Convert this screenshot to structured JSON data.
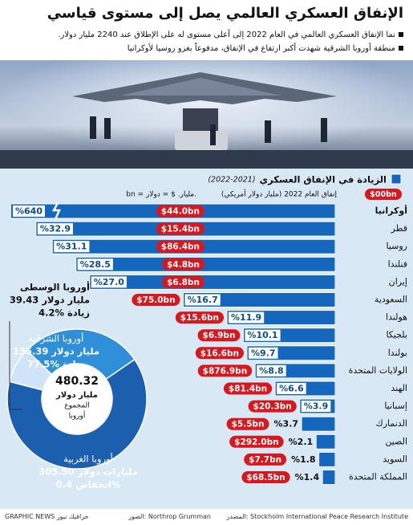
{
  "header": {
    "title": "الإنفاق العسكري العالمي يصل إلى مستوى قياسي",
    "bullets": [
      "نما الإنفاق العسكري العالمي في العام 2022 إلى أعلى مستوى له على الإطلاق عند 2240 مليار دولار.",
      "منطقة أوروبا الشرقية شهدت أكبر ارتفاع في الإنفاق، مدفوعاً بغزو روسيا لأوكرانيا"
    ]
  },
  "footer": {
    "source": "المصدر: Stockholm International Peace Research Institute",
    "photos": "الصور: Northrop Grumman",
    "brand": "GRAPHIC NEWS جرافيك نيوز"
  },
  "chart_data": [
    {
      "type": "bar",
      "orientation": "horizontal",
      "period": "(2022-2021)",
      "unit_note": "bn = مليار.  $ = دولار.",
      "categories": [
        "أوكرانيا",
        "قطر",
        "روسيا",
        "فنلندا",
        "إيران",
        "السعودية",
        "هولندا",
        "بلجيكا",
        "بولندا",
        "الولايات المتحدة",
        "الهند",
        "إسبانيا",
        "الدنمارك",
        "الصين",
        "السويد",
        "المملكة المتحدة"
      ],
      "series": [
        {
          "name": "الزيادة في الإنفاق العسكري",
          "color": "#1567bd",
          "values": [
            640,
            32.9,
            31.1,
            28.5,
            27.0,
            16.7,
            11.9,
            10.1,
            9.7,
            8.8,
            6.6,
            3.9,
            3.7,
            2.1,
            1.8,
            1.4
          ],
          "value_labels": [
            "%640",
            "%32.9",
            "%31.1",
            "%28.5",
            "%27.0",
            "%16.7",
            "%11.9",
            "%10.1",
            "%9.7",
            "%8.8",
            "%6.6",
            "%3.9",
            "%3.7",
            "%2.1",
            "%1.8",
            "%1.4"
          ]
        },
        {
          "name": "إنفاق العام 2022 (مليار دولار أمريكي)",
          "color": "#d7191f",
          "legend_sample": "$00bn",
          "values": [
            44.0,
            15.4,
            86.4,
            4.8,
            6.8,
            75.0,
            15.6,
            6.9,
            16.6,
            876.9,
            81.4,
            20.3,
            5.5,
            292.0,
            7.7,
            68.5
          ],
          "value_labels": [
            "$44.0bn",
            "$15.4bn",
            "$86.4bn",
            "$4.8bn",
            "$6.8bn",
            "$75.0bn",
            "$15.6bn",
            "$6.9bn",
            "$16.6bn",
            "$876.9bn",
            "$81.4bn",
            "$20.3bn",
            "$5.5bn",
            "$292.0bn",
            "$7.7bn",
            "$68.5bn"
          ]
        }
      ],
      "xlim": [
        0,
        35
      ],
      "axis_break": true
    },
    {
      "type": "pie",
      "donut": true,
      "total": 480.32,
      "center_lines": [
        "مليار دولار",
        "المجموع",
        "أوروبا"
      ],
      "categories": [
        "أوروبا الغربية",
        "أوروبا الشرقية",
        "أوروبا الوسطى"
      ],
      "values": [
        305.5,
        135.39,
        39.43
      ],
      "value_labels": [
        "305.50 مليارات دولار",
        "135.39 مليار دولار",
        "39.43 مليار دولار"
      ],
      "changes": [
        -0.4,
        77.5,
        4.2
      ],
      "change_labels": [
        "انخفاض 0.4%",
        "زيادة %77.5",
        "زيادة %4.2"
      ],
      "colors": [
        "#1b5fae",
        "#2f8fd8",
        "#cfe4f6"
      ]
    }
  ]
}
